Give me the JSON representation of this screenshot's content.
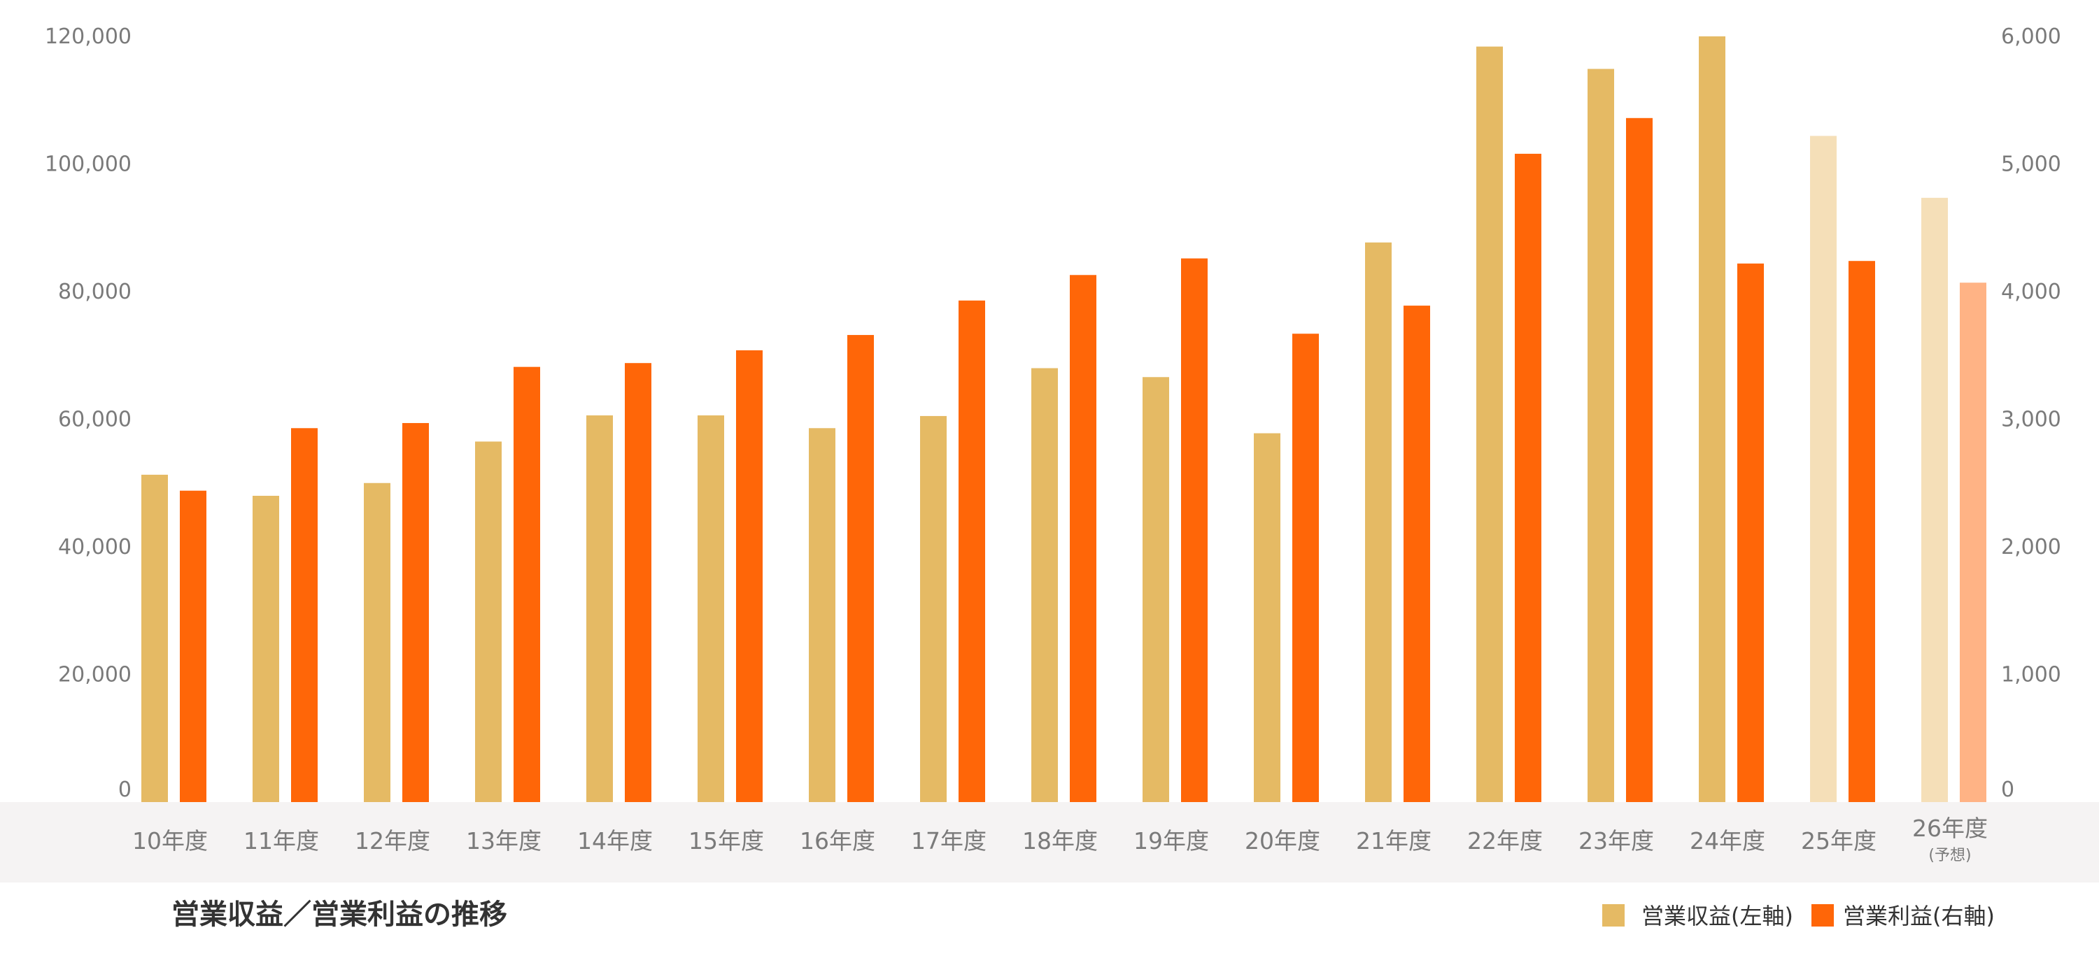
{
  "chart_data": {
    "type": "bar",
    "title": "営業収益／営業利益の推移",
    "categories": [
      "10年度",
      "11年度",
      "12年度",
      "13年度",
      "14年度",
      "15年度",
      "16年度",
      "17年度",
      "18年度",
      "19年度",
      "20年度",
      "21年度",
      "22年度",
      "23年度",
      "24年度",
      "25年度",
      "26年度"
    ],
    "category_notes": [
      "",
      "",
      "",
      "",
      "",
      "",
      "",
      "",
      "",
      "",
      "",
      "",
      "",
      "",
      "",
      "",
      "(予想)"
    ],
    "y_left": {
      "lim": [
        0,
        120000
      ],
      "ticks": [
        "0",
        "20,000",
        "40,000",
        "60,000",
        "80,000",
        "100,000",
        "120,000"
      ]
    },
    "y_right": {
      "lim": [
        0,
        6000
      ],
      "ticks": [
        "0",
        "1,000",
        "2,000",
        "3,000",
        "4,000",
        "5,000",
        "6,000"
      ]
    },
    "grid": false,
    "legend_position": "bottom-right",
    "series": [
      {
        "name": "営業収益(左軸)",
        "axis": "left",
        "color": "#E5BA64",
        "light_color": "#F5DFB8",
        "values": [
          51300,
          48000,
          50000,
          56500,
          60600,
          60600,
          58600,
          60500,
          68000,
          66600,
          57800,
          87700,
          118400,
          114900,
          120000,
          104400,
          94700
        ],
        "light_from_index": 15
      },
      {
        "name": "営業利益(右軸)",
        "axis": "right",
        "color": "#FF6608",
        "light_color": "#FFB385",
        "values": [
          2440,
          2930,
          2970,
          3410,
          3440,
          3540,
          3660,
          3930,
          4130,
          4260,
          3670,
          3890,
          5080,
          5360,
          4220,
          4240,
          4070
        ],
        "light_from_index": 16
      }
    ]
  }
}
